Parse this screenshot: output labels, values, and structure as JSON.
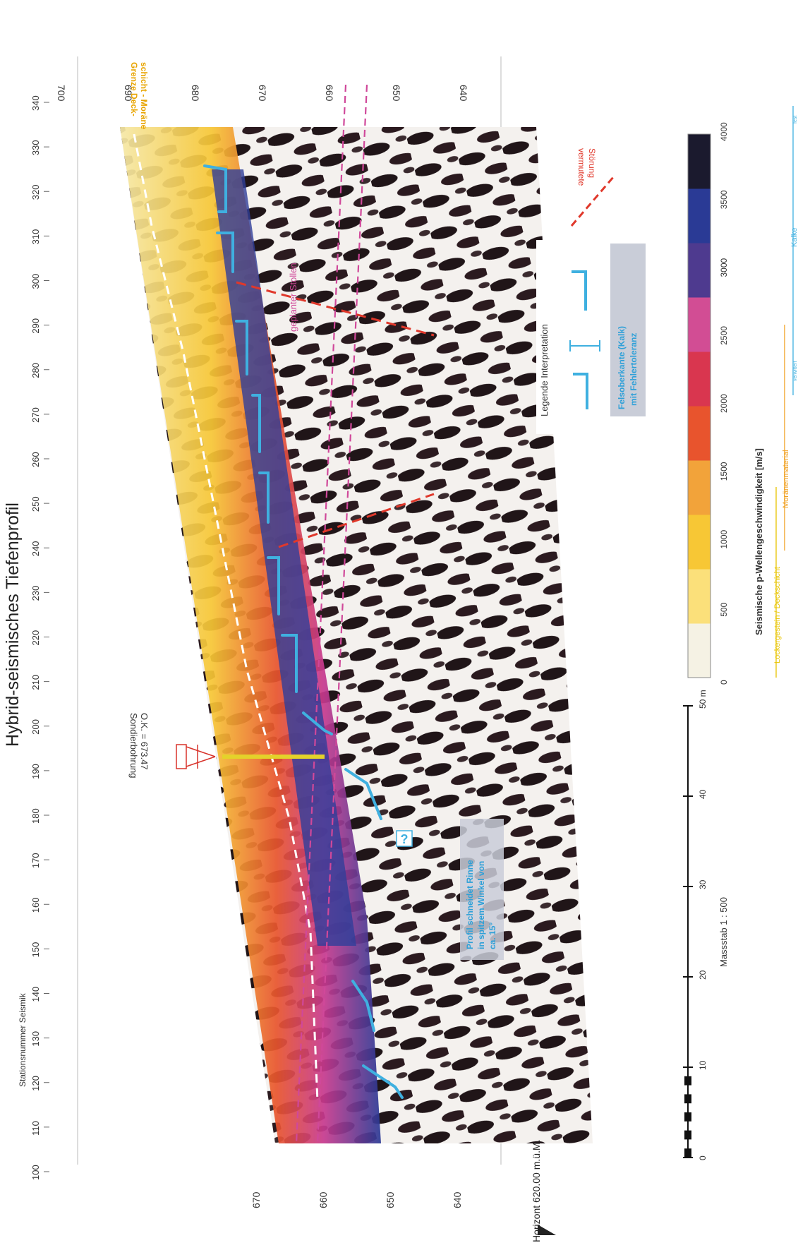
{
  "title": "Hybrid-seismisches Tiefenprofil",
  "stations": {
    "label": "Stationsnummer Seismik",
    "ticks": [
      "100",
      "110",
      "120",
      "130",
      "140",
      "150",
      "160",
      "170",
      "180",
      "190",
      "200",
      "210",
      "220",
      "230",
      "240",
      "250",
      "260",
      "270",
      "280",
      "290",
      "300",
      "310",
      "320",
      "330",
      "340"
    ]
  },
  "elevation_left": {
    "ticks": [
      "670",
      "660",
      "650",
      "640"
    ]
  },
  "elevation_right": {
    "ticks": [
      "700",
      "690",
      "680",
      "670",
      "660",
      "650",
      "640"
    ]
  },
  "horizon_label": "Horizont 620.00 m.ü.M.",
  "boundary_label_line1": "Grenze Deck-",
  "boundary_label_line2": "schicht - Moräne",
  "tunnel_label": "geplanter Stollen",
  "borehole": {
    "label": "Sondierbohrung",
    "value": "O.K. = 673.47"
  },
  "annotation_channel": [
    "Profil schneidet Rinne",
    "in spitzem Winkel von",
    "ca. 15°"
  ],
  "question_mark": "?",
  "legend": {
    "title": "Legende Interpretation",
    "item_line1": "Felsoberkante (Kalk)",
    "item_line2": "mit Fehlertoleranz",
    "fault_line1": "vermutete",
    "fault_line2": "Störung"
  },
  "scale": {
    "label": "Massstab 1 : 500",
    "ticks": [
      "0",
      "10",
      "20",
      "30",
      "40",
      "50 m"
    ]
  },
  "colorbar": {
    "title": "Seismische p-Wellengeschwindigkeit [m/s]",
    "ticks": [
      "0",
      "500",
      "1000",
      "1500",
      "2000",
      "2500",
      "3000",
      "3500",
      "4000"
    ],
    "colors": [
      "#f5f2e4",
      "#fbe07a",
      "#f7c735",
      "#f2a33a",
      "#e8542d",
      "#d9364f",
      "#d24d94",
      "#4e3a8f",
      "#2a3a95",
      "#1b1a2e"
    ]
  },
  "material_labels": {
    "deckschicht": "Lockergestein / Deckschicht",
    "morane": "Moränenmaterial",
    "kalke": "Kalke",
    "kalke_left": "verwittert",
    "kalke_right": "fest"
  },
  "colors": {
    "rock_edge": "#3fb0e0",
    "fault": "#e0382b",
    "tunnel": "#d0489a",
    "boundary": "#ffffff",
    "borehole": "#e4d22a",
    "label_orange": "#e8a400"
  }
}
